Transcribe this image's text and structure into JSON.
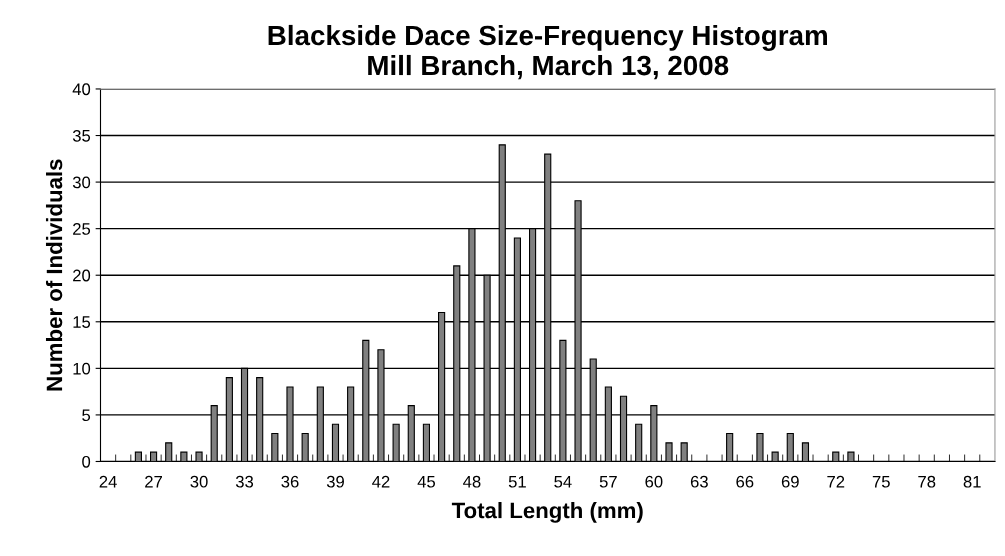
{
  "chart_data": {
    "type": "bar",
    "title": "Blackside Dace Size-Frequency Histogram\nMill Branch, March 13, 2008",
    "xlabel": "Total Length (mm)",
    "ylabel": "Number of Individuals",
    "categories": [
      "24",
      null,
      null,
      "27",
      null,
      null,
      "30",
      null,
      null,
      "33",
      null,
      null,
      "36",
      null,
      null,
      "39",
      null,
      null,
      "42",
      null,
      null,
      "45",
      null,
      null,
      "48",
      null,
      null,
      "51",
      null,
      null,
      "54",
      null,
      null,
      "57",
      null,
      null,
      "60",
      null,
      null,
      "63",
      null,
      null,
      "66",
      null,
      null,
      "69",
      null,
      null,
      "72",
      null,
      null,
      "75",
      null,
      null,
      "78",
      null,
      null,
      "81",
      null
    ],
    "values": [
      0,
      0,
      1,
      1,
      2,
      1,
      1,
      6,
      9,
      10,
      9,
      3,
      8,
      3,
      8,
      4,
      8,
      13,
      12,
      4,
      6,
      4,
      16,
      21,
      25,
      20,
      34,
      24,
      25,
      33,
      13,
      28,
      11,
      8,
      7,
      4,
      6,
      2,
      2,
      0,
      0,
      3,
      0,
      3,
      1,
      3,
      2,
      0,
      1,
      1,
      0,
      0,
      0,
      0,
      0,
      0,
      0,
      0,
      0
    ],
    "color": "#808080",
    "ylim": [
      0,
      40
    ],
    "yticks": [
      0,
      5,
      10,
      15,
      20,
      25,
      30,
      35,
      40
    ],
    "grid": "y"
  }
}
